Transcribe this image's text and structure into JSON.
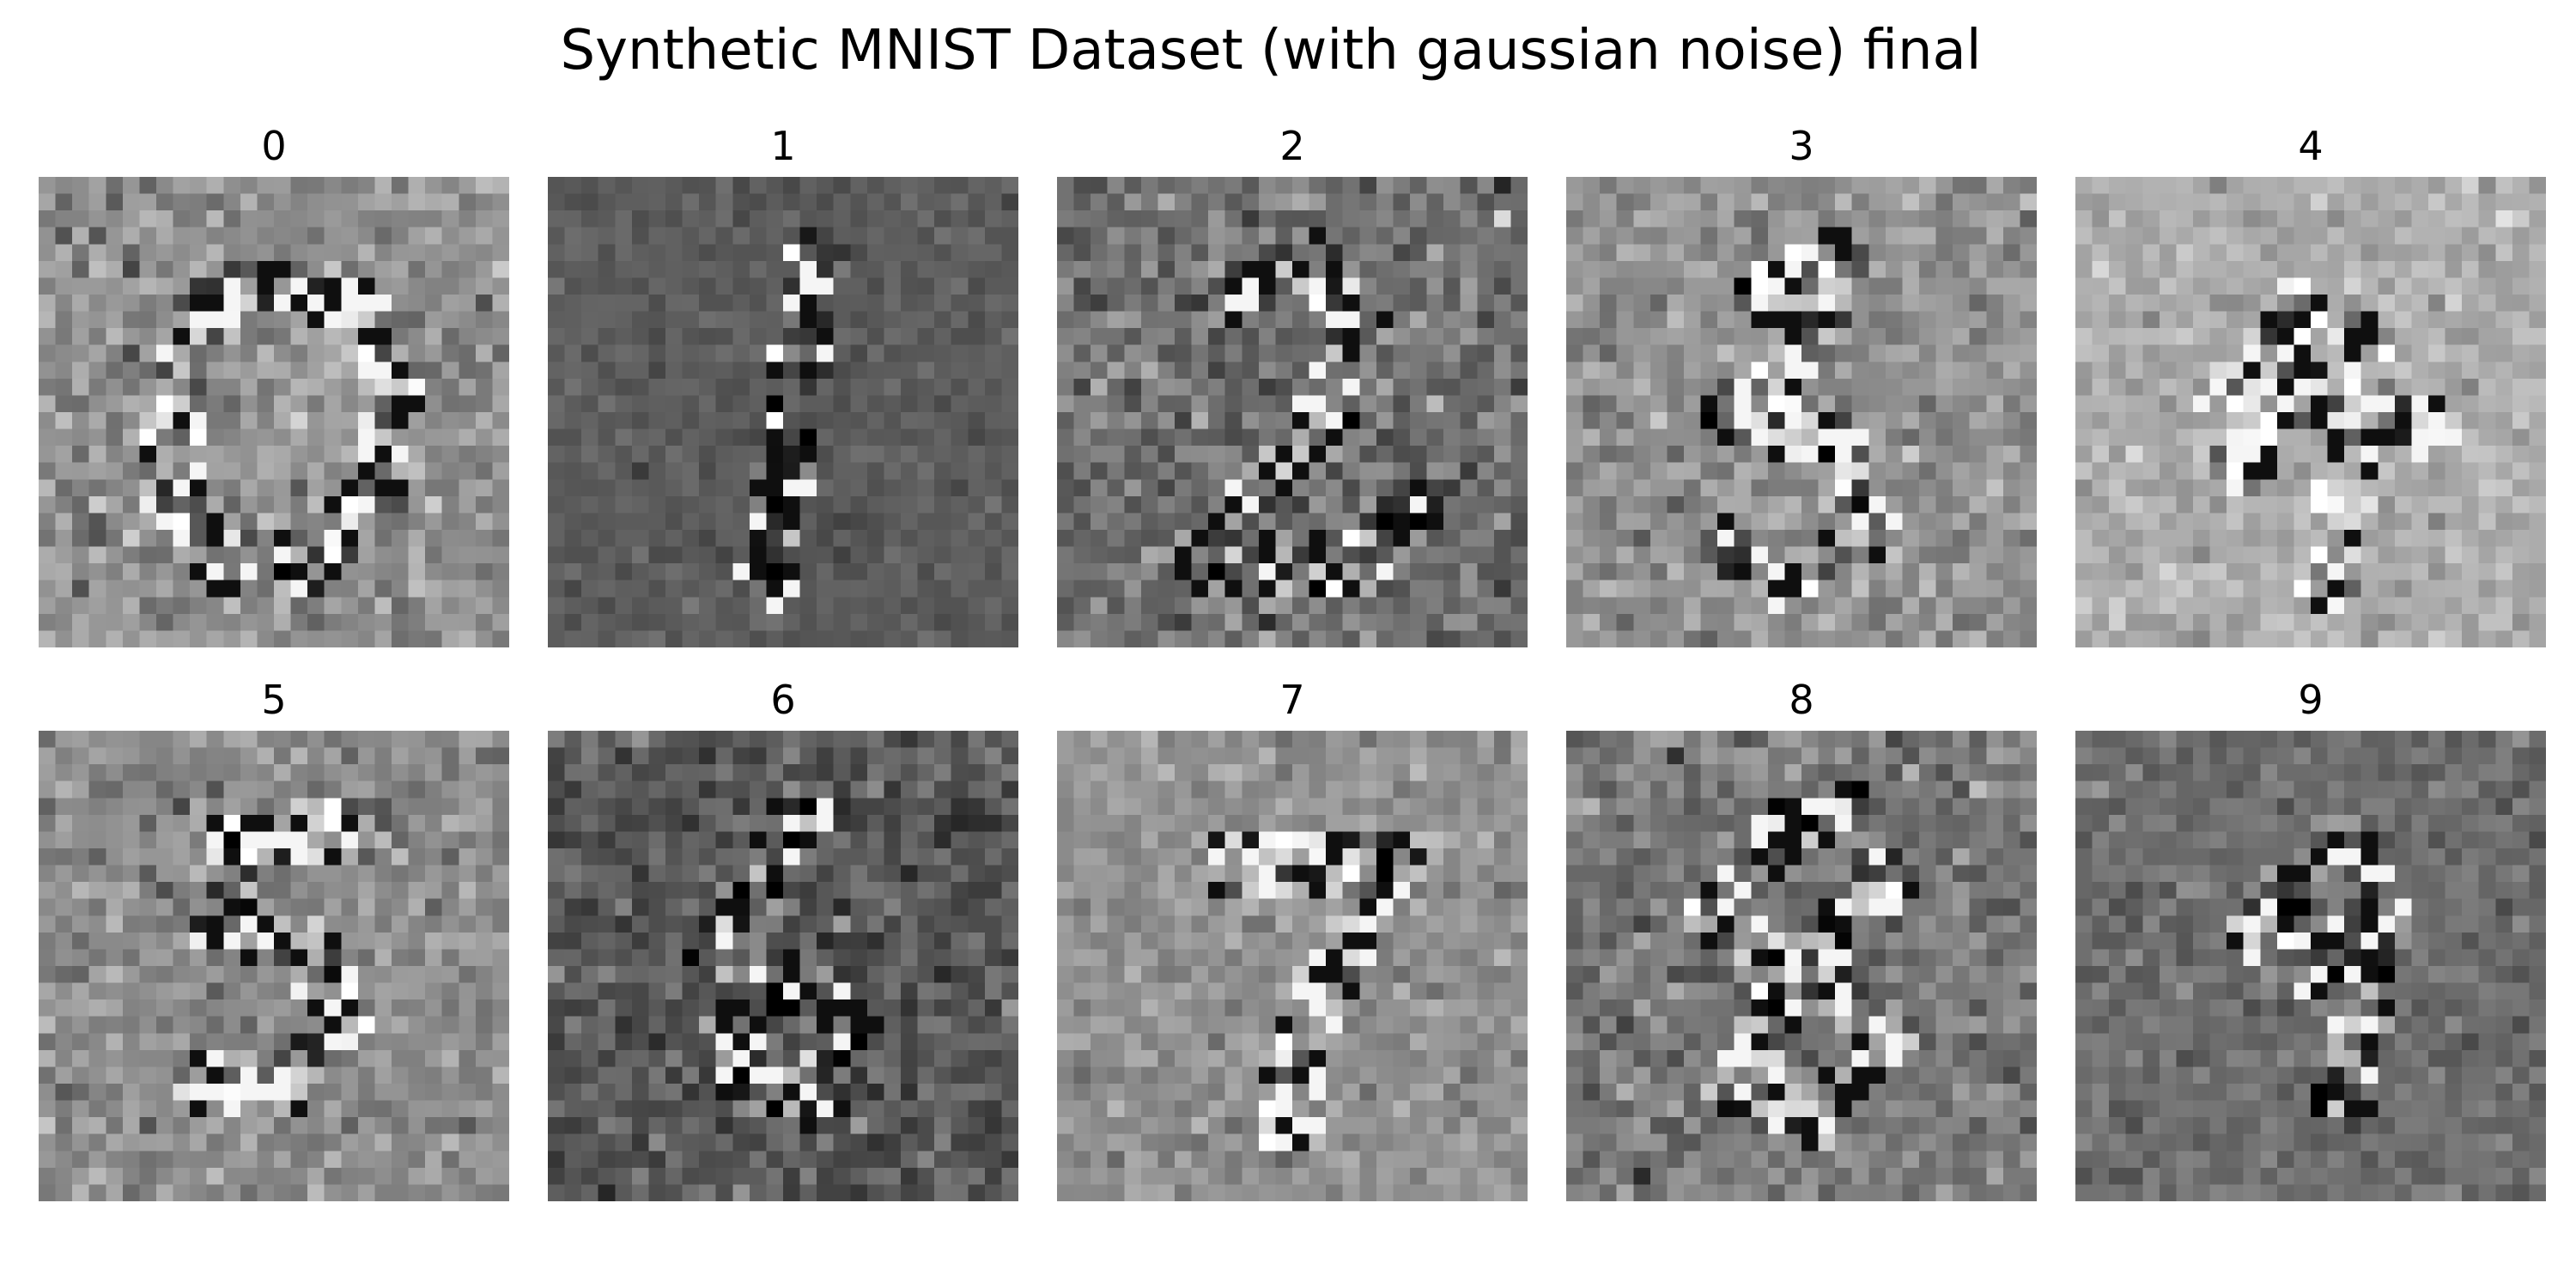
{
  "figure": {
    "title": "Synthetic MNIST Dataset (with gaussian noise) final"
  },
  "panels": [
    {
      "label": "0",
      "grid_size": 28,
      "background_gray": 145,
      "noise": 22,
      "shape": "zero"
    },
    {
      "label": "1",
      "grid_size": 28,
      "background_gray": 92,
      "noise": 10,
      "shape": "one"
    },
    {
      "label": "2",
      "grid_size": 28,
      "background_gray": 112,
      "noise": 24,
      "shape": "two"
    },
    {
      "label": "3",
      "grid_size": 28,
      "background_gray": 145,
      "noise": 20,
      "shape": "three"
    },
    {
      "label": "4",
      "grid_size": 28,
      "background_gray": 172,
      "noise": 16,
      "shape": "four"
    },
    {
      "label": "5",
      "grid_size": 28,
      "background_gray": 140,
      "noise": 20,
      "shape": "five"
    },
    {
      "label": "6",
      "grid_size": 28,
      "background_gray": 88,
      "noise": 22,
      "shape": "six"
    },
    {
      "label": "7",
      "grid_size": 28,
      "background_gray": 145,
      "noise": 16,
      "shape": "seven"
    },
    {
      "label": "8",
      "grid_size": 28,
      "background_gray": 120,
      "noise": 22,
      "shape": "eight"
    },
    {
      "label": "9",
      "grid_size": 28,
      "background_gray": 110,
      "noise": 14,
      "shape": "nine"
    }
  ]
}
